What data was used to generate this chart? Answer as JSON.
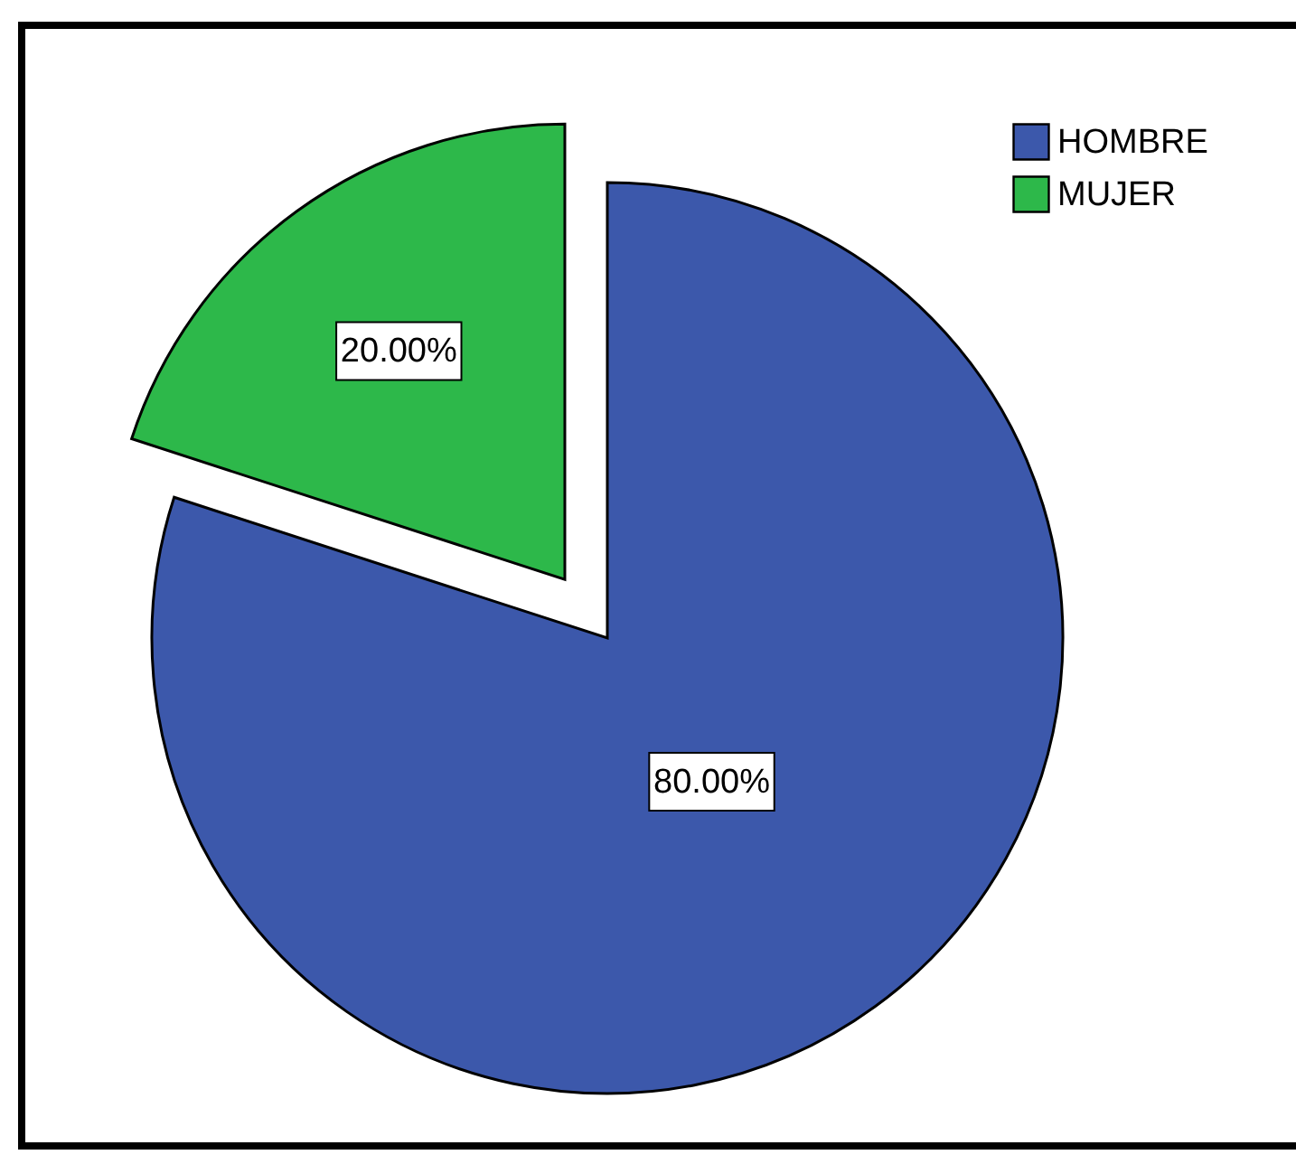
{
  "chart_data": {
    "type": "pie",
    "categories": [
      "HOMBRE",
      "MUJER"
    ],
    "values": [
      80,
      20
    ],
    "colors": [
      "#3c58ab",
      "#2db84a"
    ],
    "value_labels": [
      "80.00%",
      "20.00%"
    ],
    "legend": "top right"
  }
}
